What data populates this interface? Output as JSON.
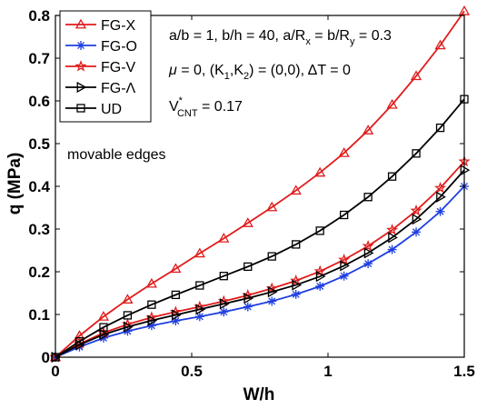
{
  "chart_data": {
    "type": "line",
    "title": "",
    "xlabel": "W/h",
    "ylabel": "q (MPa)",
    "xlim": [
      0,
      1.5
    ],
    "ylim": [
      0,
      0.8
    ],
    "xticks": [
      0,
      0.5,
      1,
      1.5
    ],
    "xtick_labels": [
      "0",
      "0.5",
      "1",
      "1.5"
    ],
    "yticks": [
      0,
      0.1,
      0.2,
      0.3,
      0.4,
      0.5,
      0.6,
      0.7,
      0.8
    ],
    "ytick_labels": [
      "0",
      "0.1",
      "0.2",
      "0.3",
      "0.4",
      "0.5",
      "0.6",
      "0.7",
      "0.8"
    ],
    "grid": false,
    "legend_position": "top-left",
    "x": [
      0,
      0.0882,
      0.1765,
      0.2647,
      0.3529,
      0.4412,
      0.5294,
      0.6176,
      0.7059,
      0.7941,
      0.8824,
      0.9706,
      1.0588,
      1.1471,
      1.2353,
      1.3235,
      1.4118,
      1.5
    ],
    "series": [
      {
        "name": "FG-X",
        "color": "#e01b1b",
        "marker": "triangle-up",
        "values": [
          0,
          0.05,
          0.095,
          0.135,
          0.172,
          0.207,
          0.243,
          0.278,
          0.314,
          0.351,
          0.39,
          0.432,
          0.478,
          0.531,
          0.591,
          0.658,
          0.73,
          0.81
        ]
      },
      {
        "name": "FG-O",
        "color": "#1f3fe0",
        "marker": "asterisk",
        "values": [
          0,
          0.024,
          0.045,
          0.061,
          0.074,
          0.085,
          0.095,
          0.106,
          0.118,
          0.131,
          0.147,
          0.166,
          0.19,
          0.219,
          0.252,
          0.293,
          0.341,
          0.4
        ]
      },
      {
        "name": "FG-V",
        "color": "#e01b1b",
        "marker": "star",
        "values": [
          0,
          0.031,
          0.057,
          0.077,
          0.093,
          0.106,
          0.118,
          0.131,
          0.145,
          0.161,
          0.179,
          0.201,
          0.228,
          0.26,
          0.298,
          0.343,
          0.396,
          0.458
        ]
      },
      {
        "name": "FG-Λ",
        "color": "#000000",
        "marker": "triangle-right",
        "values": [
          0,
          0.029,
          0.053,
          0.071,
          0.086,
          0.099,
          0.112,
          0.125,
          0.138,
          0.153,
          0.169,
          0.189,
          0.214,
          0.244,
          0.28,
          0.323,
          0.375,
          0.438
        ]
      },
      {
        "name": "UD",
        "color": "#000000",
        "marker": "square",
        "values": [
          0,
          0.037,
          0.07,
          0.098,
          0.123,
          0.146,
          0.168,
          0.19,
          0.212,
          0.236,
          0.264,
          0.296,
          0.333,
          0.375,
          0.423,
          0.477,
          0.537,
          0.604
        ]
      }
    ],
    "annotations": {
      "movable_edges": "movable edges"
    }
  }
}
